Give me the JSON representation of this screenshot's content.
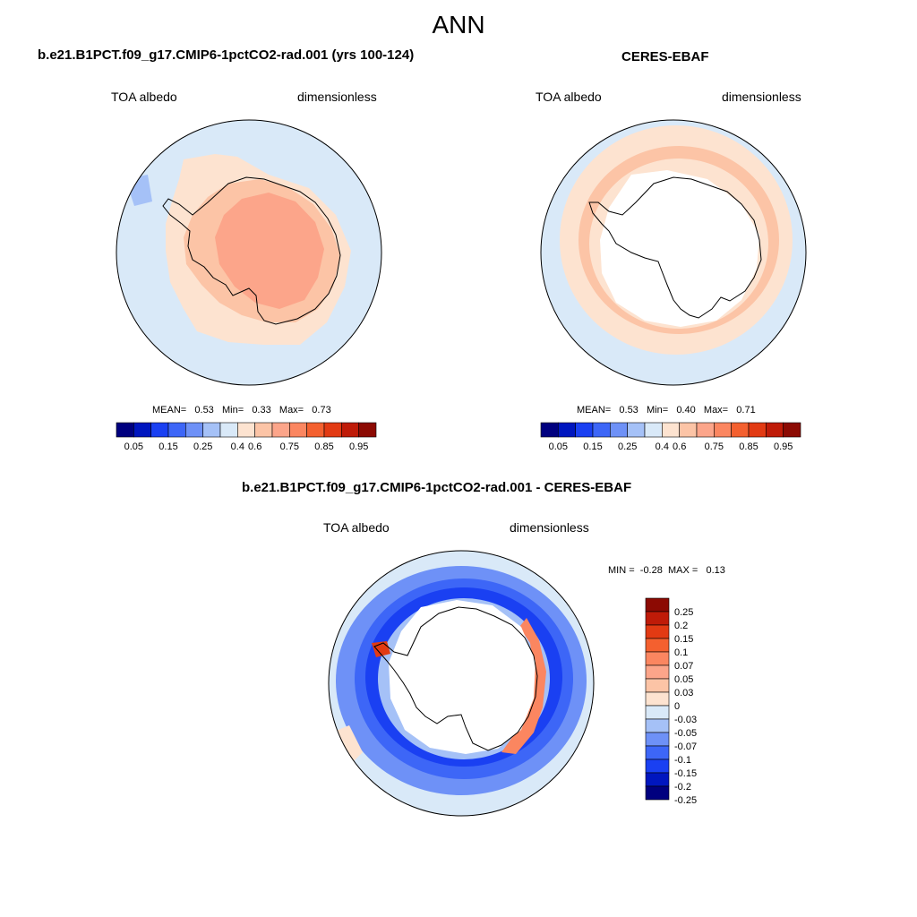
{
  "figure": {
    "title": "ANN"
  },
  "panels": [
    {
      "title": "b.e21.B1PCT.f09_g17.CMIP6-1pctCO2-rad.001 (yrs 100-124)",
      "left_label": "TOA albedo",
      "right_label": "dimensionless",
      "stats": {
        "mean_label": "MEAN=",
        "mean": "0.53",
        "min_label": "Min=",
        "min": "0.33",
        "max_label": "Max=",
        "max": "0.73"
      }
    },
    {
      "title": "CERES-EBAF",
      "left_label": "TOA albedo",
      "right_label": "dimensionless",
      "stats": {
        "mean_label": "MEAN=",
        "mean": "0.53",
        "min_label": "Min=",
        "min": "0.40",
        "max_label": "Max=",
        "max": "0.71"
      }
    },
    {
      "title": "b.e21.B1PCT.f09_g17.CMIP6-1pctCO2-rad.001 - CERES-EBAF",
      "left_label": "TOA albedo",
      "right_label": "dimensionless",
      "minmax": {
        "min_label": "MIN =",
        "min": "-0.28",
        "max_label": "MAX =",
        "max": "0.13"
      }
    }
  ],
  "colorbar_abs": {
    "colors": [
      "#00007f",
      "#0016bf",
      "#1a40f2",
      "#3d66f7",
      "#6e91f7",
      "#a5c1f7",
      "#d9e9f8",
      "#fde3d0",
      "#fcc4a6",
      "#fca58a",
      "#fb8660",
      "#f4602f",
      "#e23a13",
      "#bf1b08",
      "#8c0a03"
    ],
    "tick_labels": [
      "0.05",
      "0.15",
      "0.25",
      "0.4",
      "0.6",
      "0.75",
      "0.85",
      "0.95"
    ]
  },
  "colorbar_diff": {
    "colors": [
      "#8c0a03",
      "#bf1b08",
      "#e23a13",
      "#f4602f",
      "#fb8660",
      "#fca58a",
      "#fcc4a6",
      "#fde3d0",
      "#d9e9f8",
      "#a5c1f7",
      "#6e91f7",
      "#3d66f7",
      "#1a40f2",
      "#0016bf",
      "#00007f"
    ],
    "tick_labels": [
      "0.25",
      "0.2",
      "0.15",
      "0.1",
      "0.07",
      "0.05",
      "0.03",
      "0",
      "-0.03",
      "-0.05",
      "-0.07",
      "-0.1",
      "-0.15",
      "-0.2",
      "-0.25"
    ]
  },
  "map_colors": {
    "ocean_light": "#d9e9f8",
    "ocean_mid": "#a5c1f7",
    "cream": "#fde3d0",
    "peach": "#fcc4a6",
    "salmon": "#fca58a",
    "orange": "#fb8660",
    "red": "#e23a13",
    "blue1": "#6e91f7",
    "blue2": "#3d66f7",
    "blue3": "#1a40f2",
    "blue4": "#0016bf",
    "land_white": "#ffffff"
  }
}
